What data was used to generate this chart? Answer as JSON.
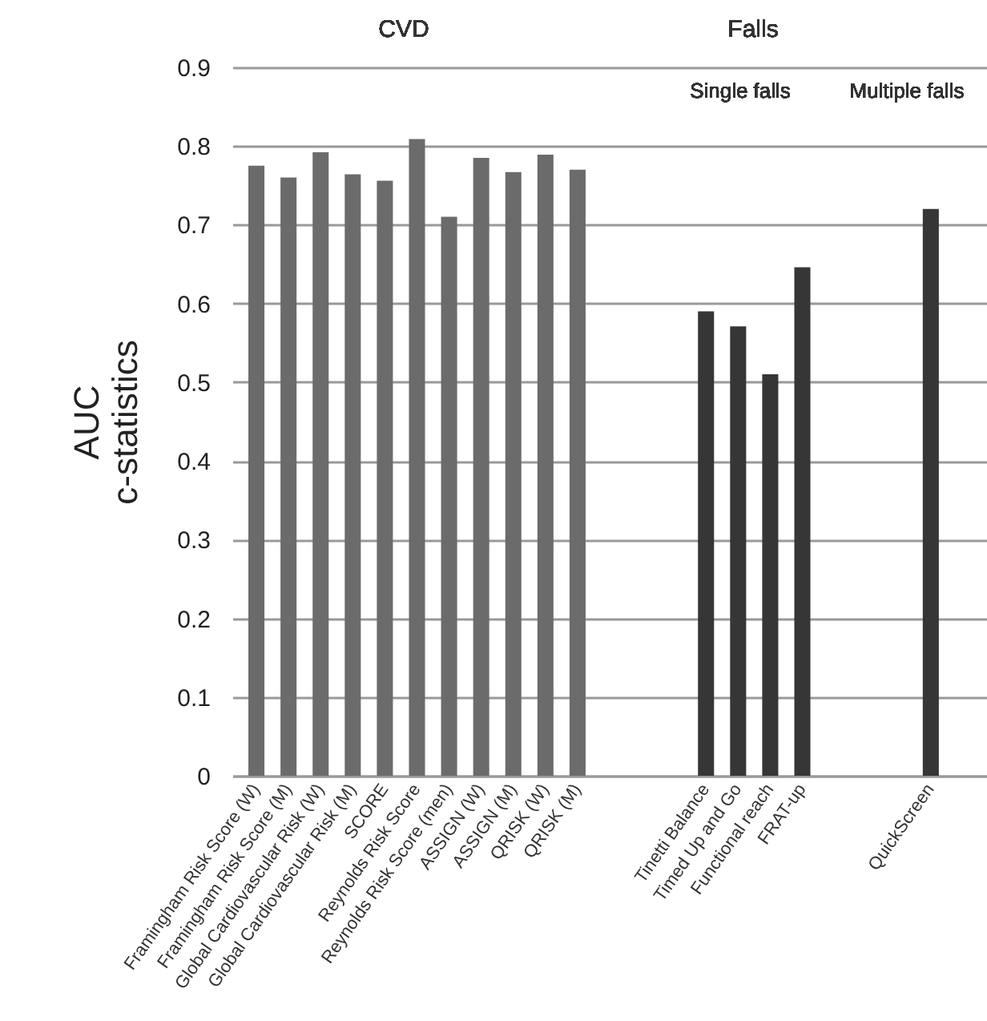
{
  "chart_data": {
    "type": "bar",
    "ylabel": "AUC\nc-statistics",
    "categories": [
      "Framingham Risk Score (W)",
      "Framingham Risk Score (M)",
      "Global Cardiovascular Risk (W)",
      "Global Cardiovascular Risk (M)",
      "SCORE",
      "Reynolds Risk Score",
      "Reynolds Risk Score (men)",
      "ASSIGN (W)",
      "ASSIGN (M)",
      "QRISK (W)",
      "QRISK (M)",
      null,
      null,
      null,
      "Tinetti Balance",
      "Timed Up and Go",
      "Functional reach",
      "FRAT-up",
      null,
      null,
      null,
      "QuickScreen"
    ],
    "values": [
      0.775,
      0.76,
      0.792,
      0.764,
      0.756,
      0.809,
      0.71,
      0.785,
      0.767,
      0.789,
      0.77,
      null,
      null,
      null,
      0.59,
      0.571,
      0.51,
      0.646,
      null,
      null,
      null,
      0.72
    ],
    "colors": [
      "#6b6b6b",
      "#6b6b6b",
      "#6b6b6b",
      "#6b6b6b",
      "#6b6b6b",
      "#6b6b6b",
      "#6b6b6b",
      "#6b6b6b",
      "#6b6b6b",
      "#6b6b6b",
      "#6b6b6b",
      null,
      null,
      null,
      "#363636",
      "#363636",
      "#363636",
      "#363636",
      null,
      null,
      null,
      "#363636"
    ],
    "ylim": [
      0,
      0.9
    ],
    "yticks": [
      0,
      0.1,
      0.2,
      0.3,
      0.4,
      0.5,
      0.6,
      0.7,
      0.8,
      0.9
    ],
    "grid": "y",
    "annotations": [
      "CVD",
      "Falls",
      "Single falls",
      "Multiple falls"
    ]
  }
}
